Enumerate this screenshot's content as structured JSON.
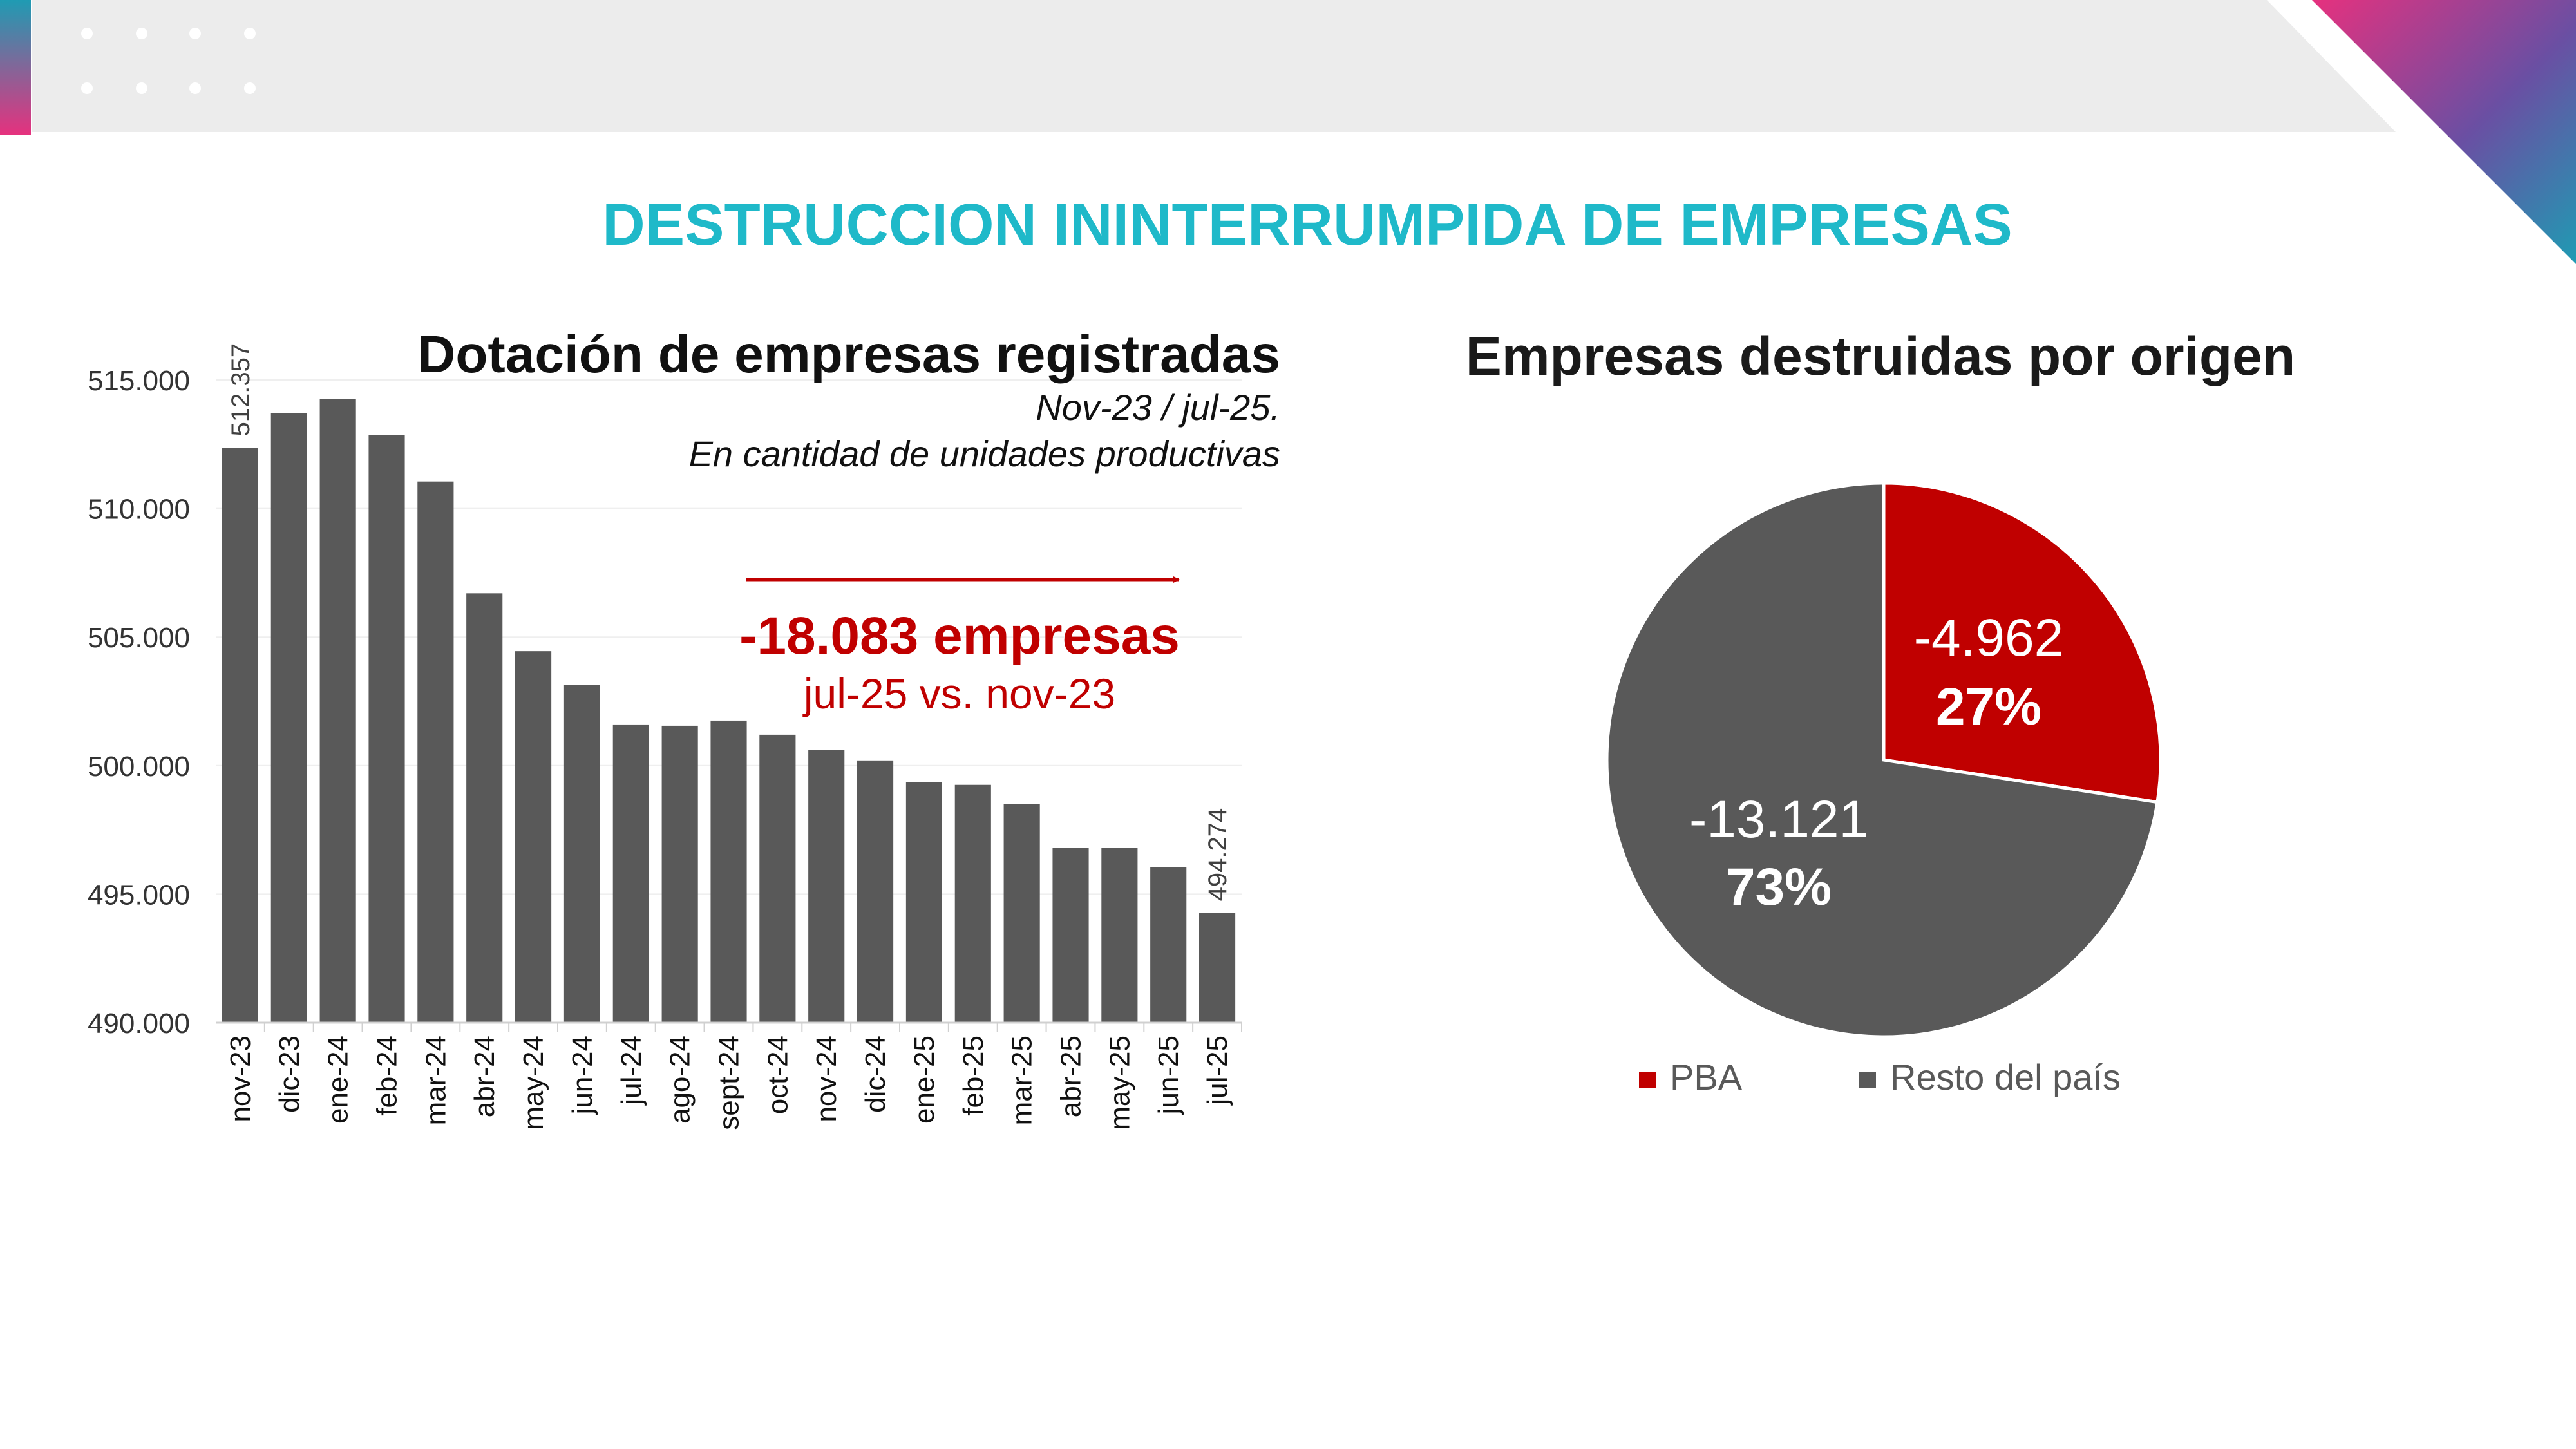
{
  "slide": {
    "title": "DESTRUCCION ININTERRUMPIDA DE EMPRESAS",
    "colors": {
      "accent_teal": "#1fb9c9",
      "accent_red": "#c00000",
      "bar_gray": "#595959",
      "header_gray": "#ececec",
      "text_dark": "#1a1a1a",
      "magenta": "#e6317e",
      "blue": "#2a7fa8"
    }
  },
  "bar_chart": {
    "title": "Dotación de empresas registradas",
    "subtitle_line1": "Nov-23 / jul-25.",
    "subtitle_line2": "En cantidad de unidades productivas",
    "annotation_value": "-18.083 empresas",
    "annotation_period": "jul-25 vs. nov-23"
  },
  "pie_chart": {
    "title": "Empresas destruidas por origen",
    "slices": [
      {
        "name": "PBA",
        "value_label": "-4.962",
        "pct_label": "27%"
      },
      {
        "name": "Resto del país",
        "value_label": "-13.121",
        "pct_label": "73%"
      }
    ]
  },
  "chart_data": [
    {
      "type": "bar",
      "title": "Dotación de empresas registradas",
      "subtitle": "Nov-23 / jul-25. En cantidad de unidades productivas",
      "categories": [
        "nov-23",
        "dic-23",
        "ene-24",
        "feb-24",
        "mar-24",
        "abr-24",
        "may-24",
        "jun-24",
        "jul-24",
        "ago-24",
        "sept-24",
        "oct-24",
        "nov-24",
        "dic-24",
        "ene-25",
        "feb-25",
        "mar-25",
        "abr-25",
        "may-25",
        "jun-25",
        "jul-25"
      ],
      "values": [
        512357,
        513700,
        514250,
        512850,
        511050,
        506700,
        504450,
        503150,
        501600,
        501550,
        501750,
        501200,
        500600,
        500200,
        499350,
        499250,
        498500,
        496800,
        496800,
        496050,
        494274
      ],
      "data_labels": {
        "nov-23": "512.357",
        "jul-25": "494.274"
      },
      "ylim": [
        490000,
        515000
      ],
      "yticks": [
        490000,
        495000,
        500000,
        505000,
        510000,
        515000
      ],
      "ytick_labels": [
        "490.000",
        "495.000",
        "500.000",
        "505.000",
        "510.000",
        "515.000"
      ],
      "grid": true,
      "xlabel": "",
      "ylabel": ""
    },
    {
      "type": "pie",
      "title": "Empresas destruidas por origen",
      "labels": [
        "PBA",
        "Resto del país"
      ],
      "values": [
        4962,
        13121
      ],
      "percent": [
        27,
        73
      ],
      "colors": [
        "#c00000",
        "#595959"
      ],
      "legend": "bottom"
    }
  ]
}
